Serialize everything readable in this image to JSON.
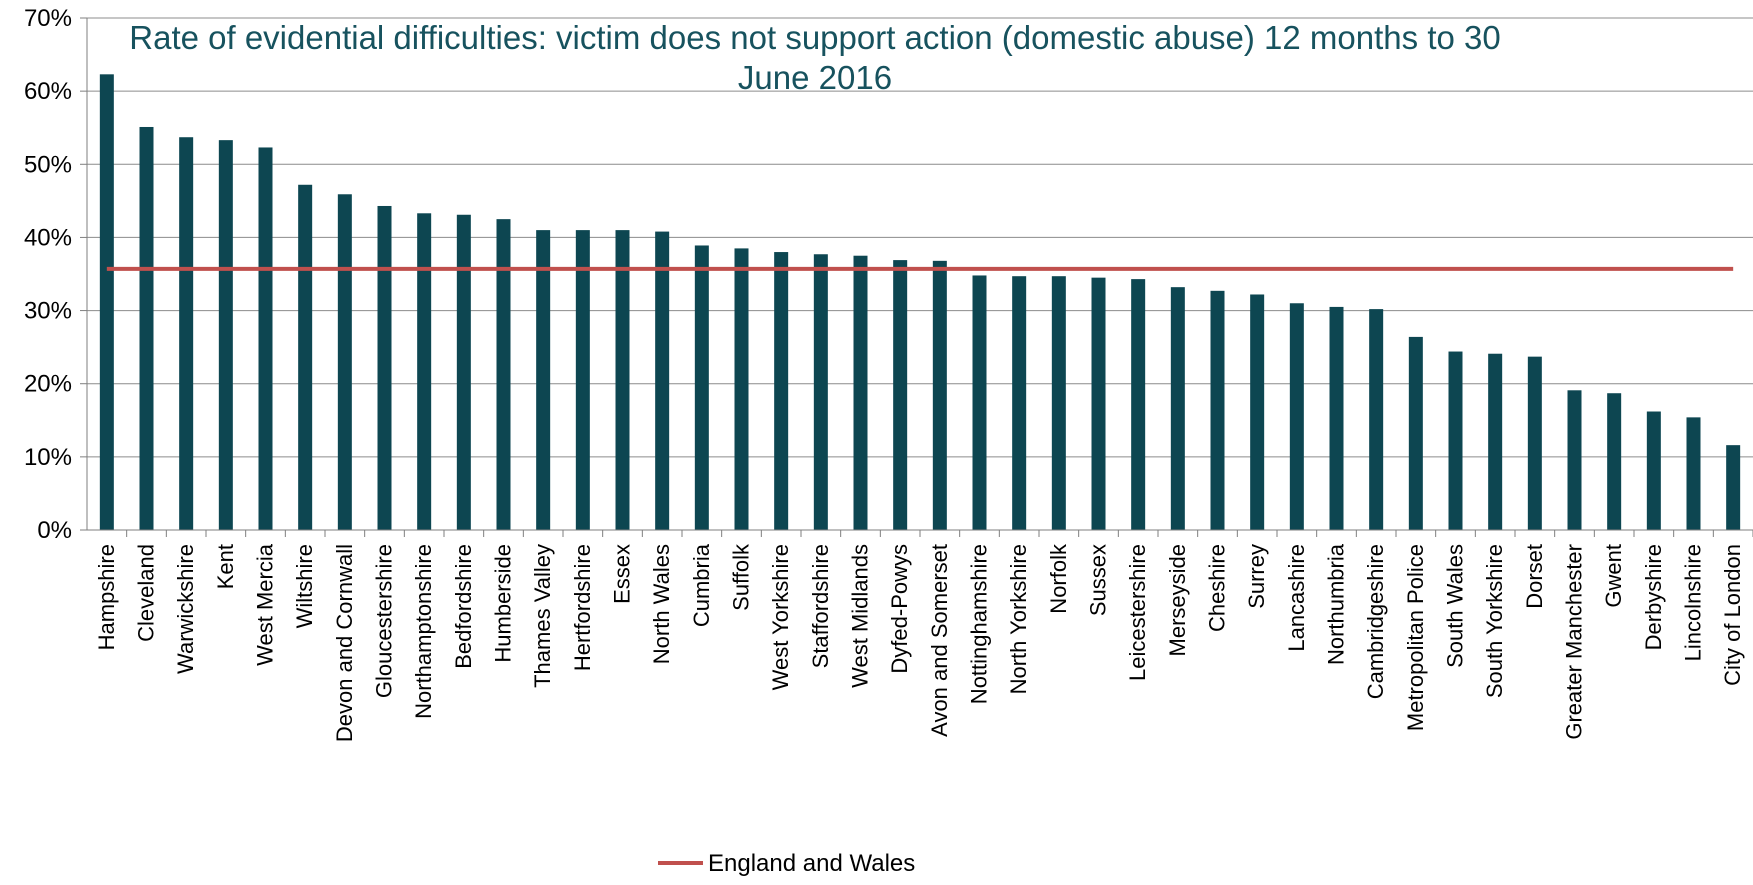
{
  "chart_data": {
    "type": "bar",
    "title_lines": [
      "Rate of evidential difficulties: victim does not support action (domestic abuse) 12 months to 30",
      "June 2016"
    ],
    "xlabel": "",
    "ylabel": "",
    "ylim": [
      0,
      0.7
    ],
    "yticks": [
      {
        "value": 0,
        "label": "0%"
      },
      {
        "value": 0.1,
        "label": "10%"
      },
      {
        "value": 0.2,
        "label": "20%"
      },
      {
        "value": 0.3,
        "label": "30%"
      },
      {
        "value": 0.4,
        "label": "40%"
      },
      {
        "value": 0.5,
        "label": "50%"
      },
      {
        "value": 0.6,
        "label": "60%"
      },
      {
        "value": 0.7,
        "label": "70%"
      }
    ],
    "grid": true,
    "legend_position": "bottom",
    "categories": [
      "Hampshire",
      "Cleveland",
      "Warwickshire",
      "Kent",
      "West Mercia",
      "Wiltshire",
      "Devon and Cornwall",
      "Gloucestershire",
      "Northamptonshire",
      "Bedfordshire",
      "Humberside",
      "Thames Valley",
      "Hertfordshire",
      "Essex",
      "North Wales",
      "Cumbria",
      "Suffolk",
      "West Yorkshire",
      "Staffordshire",
      "West Midlands",
      "Dyfed-Powys",
      "Avon and Somerset",
      "Nottinghamshire",
      "North Yorkshire",
      "Norfolk",
      "Sussex",
      "Leicestershire",
      "Merseyside",
      "Cheshire",
      "Surrey",
      "Lancashire",
      "Northumbria",
      "Cambridgeshire",
      "Metropolitan Police",
      "South Wales",
      "South Yorkshire",
      "Dorset",
      "Greater Manchester",
      "Gwent",
      "Derbyshire",
      "Lincolnshire",
      "City of London"
    ],
    "series": [
      {
        "type": "bar",
        "color": "#0d4651",
        "values": [
          0.623,
          0.551,
          0.537,
          0.533,
          0.523,
          0.472,
          0.459,
          0.443,
          0.433,
          0.431,
          0.425,
          0.41,
          0.41,
          0.41,
          0.408,
          0.389,
          0.385,
          0.38,
          0.377,
          0.375,
          0.369,
          0.368,
          0.348,
          0.347,
          0.347,
          0.345,
          0.343,
          0.332,
          0.327,
          0.322,
          0.31,
          0.305,
          0.302,
          0.264,
          0.244,
          0.241,
          0.237,
          0.191,
          0.187,
          0.162,
          0.154,
          0.116
        ]
      },
      {
        "name": "England and Wales",
        "type": "line",
        "color": "#c0504d",
        "value": 0.357
      }
    ]
  }
}
